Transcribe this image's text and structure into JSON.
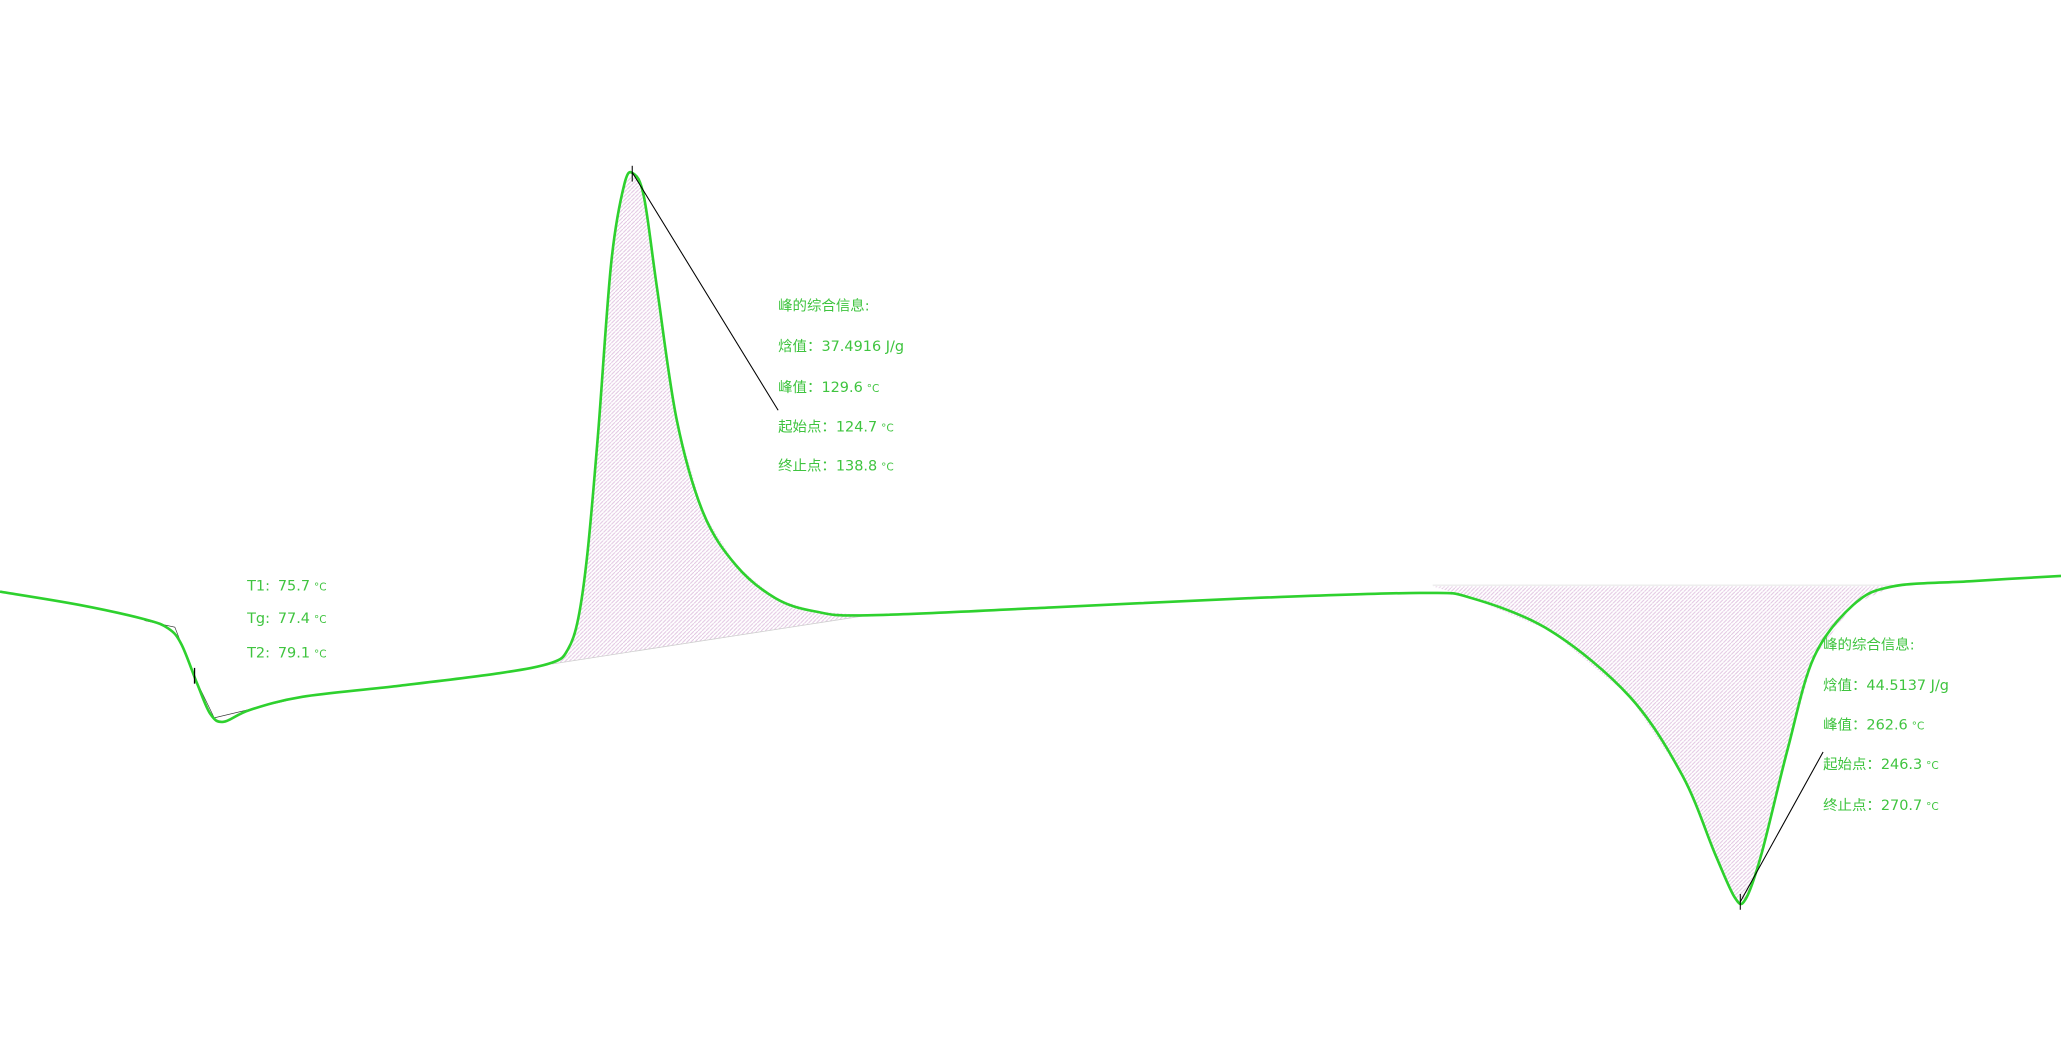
{
  "chart_data": {
    "type": "line",
    "title": "",
    "xlabel": "",
    "ylabel": "",
    "grid": false,
    "colors": {
      "curve": "#2ed12e",
      "text": "#3fc43f",
      "fill": "#e6c8e6",
      "leader": "#000000"
    },
    "glass_transition": {
      "lines": [
        {
          "label": "T1:",
          "value": "75.7",
          "unit": "°C"
        },
        {
          "label": "Tg:",
          "value": "77.4",
          "unit": "°C"
        },
        {
          "label": "T2:",
          "value": "79.1",
          "unit": "°C"
        }
      ]
    },
    "peaks": [
      {
        "direction": "up",
        "title": "峰的综合信息:",
        "lines": [
          {
            "label": "焓值：",
            "value": "37.4916 J/g",
            "unit": ""
          },
          {
            "label": "峰值：",
            "value": "129.6",
            "unit": "°C"
          },
          {
            "label": "起始点：",
            "value": "124.7",
            "unit": "°C"
          },
          {
            "label": "终止点：",
            "value": "138.8",
            "unit": "°C"
          }
        ]
      },
      {
        "direction": "down",
        "title": "峰的综合信息:",
        "lines": [
          {
            "label": "焓值：",
            "value": "44.5137 J/g",
            "unit": ""
          },
          {
            "label": "峰值：",
            "value": "262.6",
            "unit": "°C"
          },
          {
            "label": "起始点：",
            "value": "246.3",
            "unit": "°C"
          },
          {
            "label": "终止点：",
            "value": "270.7",
            "unit": "°C"
          }
        ]
      }
    ]
  }
}
